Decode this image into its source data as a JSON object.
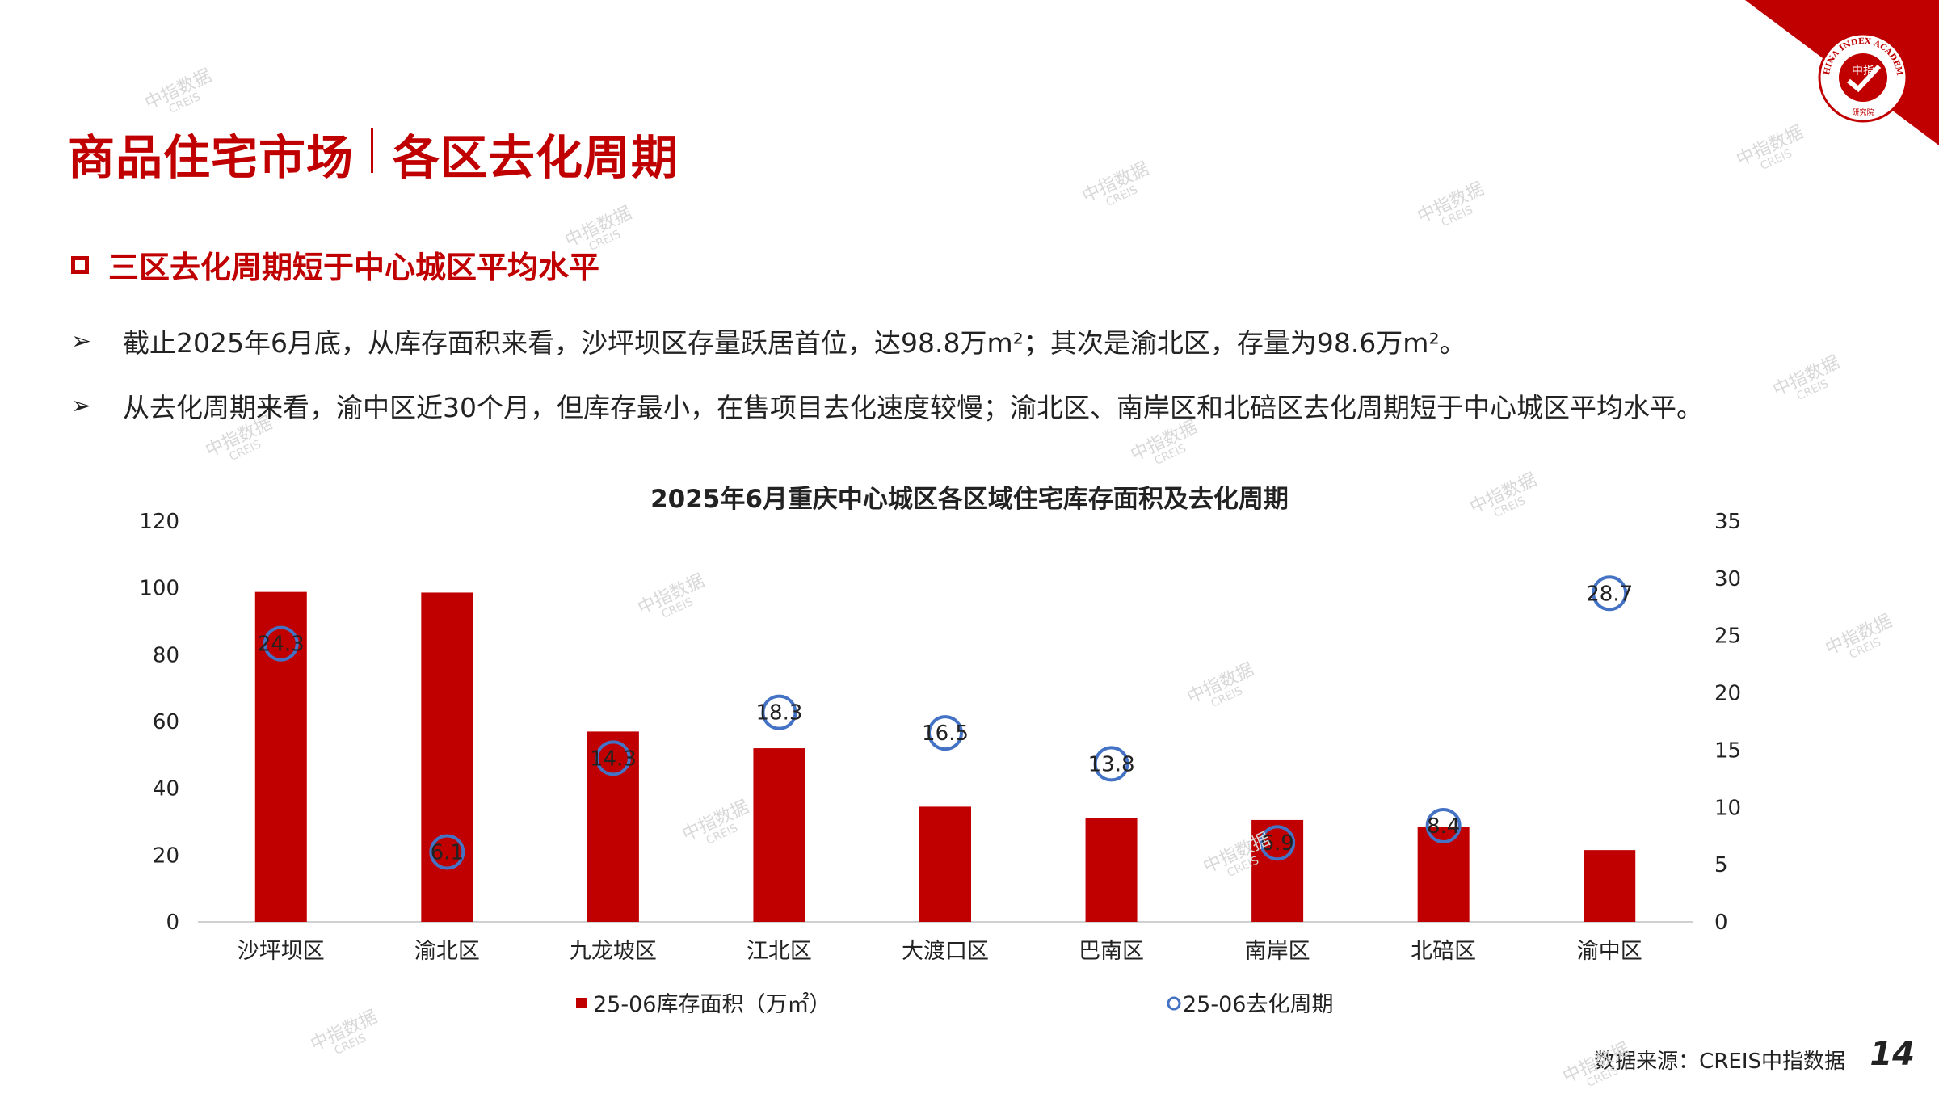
{
  "page": {
    "title_part1": "商品住宅市场",
    "title_part2": "各区去化周期",
    "subheading": "三区去化周期短于中心城区平均水平",
    "bullets": [
      "截止2025年6月底，从库存面积来看，沙坪坝区存量跃居首位，达98.8万m²；其次是渝北区，存量为98.6万m²。",
      "从去化周期来看，渝中区近30个月，但库存最小，在售项目去化速度较慢；渝北区、南岸区和北碚区去化周期短于中心城区平均水平。"
    ],
    "source": "数据来源：CREIS中指数据",
    "page_number": "14",
    "logo": {
      "text": "CHINA INDEX ACADEMY",
      "center": "中指",
      "bottom": "研究院"
    },
    "watermark": {
      "line1": "中指数据",
      "line2": "CREIS"
    }
  },
  "colors": {
    "accent": "#c00000",
    "bar": "#c00000",
    "marker": "#4472c4"
  },
  "chart_data": {
    "type": "bar",
    "title": "2025年6月重庆中心城区各区域住宅库存面积及去化周期",
    "categories": [
      "沙坪坝区",
      "渝北区",
      "九龙坡区",
      "江北区",
      "大渡口区",
      "巴南区",
      "南岸区",
      "北碚区",
      "渝中区"
    ],
    "series": [
      {
        "name": "25-06库存面积（万㎡）",
        "type": "bar",
        "axis": "left",
        "values": [
          98.8,
          98.6,
          57,
          52,
          34.5,
          31,
          30.5,
          28.5,
          21.5
        ]
      },
      {
        "name": "25-06去化周期",
        "type": "scatter",
        "axis": "right",
        "values": [
          24.3,
          6.1,
          14.3,
          18.3,
          16.5,
          13.8,
          6.9,
          8.4,
          28.7
        ],
        "labels": [
          "24.3",
          "6.1",
          "14.3",
          "18.3",
          "16.5",
          "13.8",
          "6.9",
          "8.4",
          "28.7"
        ]
      }
    ],
    "y_left": {
      "min": 0,
      "max": 120,
      "ticks": [
        "0",
        "20",
        "40",
        "60",
        "80",
        "100",
        "120"
      ]
    },
    "y_right": {
      "min": 0,
      "max": 35,
      "ticks": [
        "0",
        "5",
        "10",
        "15",
        "20",
        "25",
        "30",
        "35"
      ]
    },
    "legend": "bottom",
    "grid": false
  }
}
